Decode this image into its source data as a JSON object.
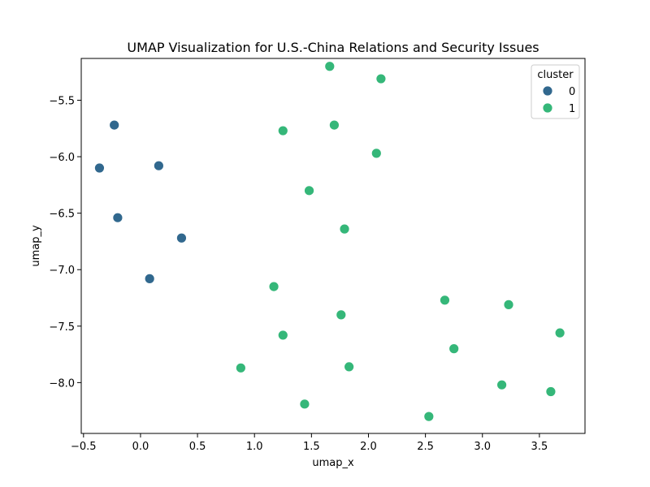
{
  "chart_data": {
    "type": "scatter",
    "title": "UMAP Visualization for U.S.-China Relations and Security Issues",
    "xlabel": "umap_x",
    "ylabel": "umap_y",
    "xlim": [
      -0.52,
      3.9
    ],
    "ylim": [
      -8.45,
      -5.13
    ],
    "xticks": [
      -0.5,
      0.0,
      0.5,
      1.0,
      1.5,
      2.0,
      2.5,
      3.0,
      3.5
    ],
    "xtick_labels": [
      "−0.5",
      "0.0",
      "0.5",
      "1.0",
      "1.5",
      "2.0",
      "2.5",
      "3.0",
      "3.5"
    ],
    "yticks": [
      -5.5,
      -6.0,
      -6.5,
      -7.0,
      -7.5,
      -8.0
    ],
    "ytick_labels": [
      "−5.5",
      "−6.0",
      "−6.5",
      "−7.0",
      "−7.5",
      "−8.0"
    ],
    "grid": false,
    "legend": {
      "title": "cluster",
      "placement": "top-right",
      "entries": [
        {
          "label": "0",
          "color": "#31688e"
        },
        {
          "label": "1",
          "color": "#35b779"
        }
      ]
    },
    "series": [
      {
        "name": "0",
        "color": "#31688e",
        "points": [
          [
            -0.23,
            -5.72
          ],
          [
            -0.36,
            -6.1
          ],
          [
            0.16,
            -6.08
          ],
          [
            -0.2,
            -6.54
          ],
          [
            0.36,
            -6.72
          ],
          [
            0.08,
            -7.08
          ]
        ]
      },
      {
        "name": "1",
        "color": "#35b779",
        "points": [
          [
            1.66,
            -5.2
          ],
          [
            2.11,
            -5.31
          ],
          [
            1.25,
            -5.77
          ],
          [
            1.7,
            -5.72
          ],
          [
            2.07,
            -5.97
          ],
          [
            1.48,
            -6.3
          ],
          [
            1.79,
            -6.64
          ],
          [
            1.17,
            -7.15
          ],
          [
            1.76,
            -7.4
          ],
          [
            1.25,
            -7.58
          ],
          [
            2.67,
            -7.27
          ],
          [
            3.23,
            -7.31
          ],
          [
            3.68,
            -7.56
          ],
          [
            2.75,
            -7.7
          ],
          [
            0.88,
            -7.87
          ],
          [
            1.83,
            -7.86
          ],
          [
            3.17,
            -8.02
          ],
          [
            3.6,
            -8.08
          ],
          [
            1.44,
            -8.19
          ],
          [
            2.53,
            -8.3
          ]
        ]
      }
    ]
  }
}
